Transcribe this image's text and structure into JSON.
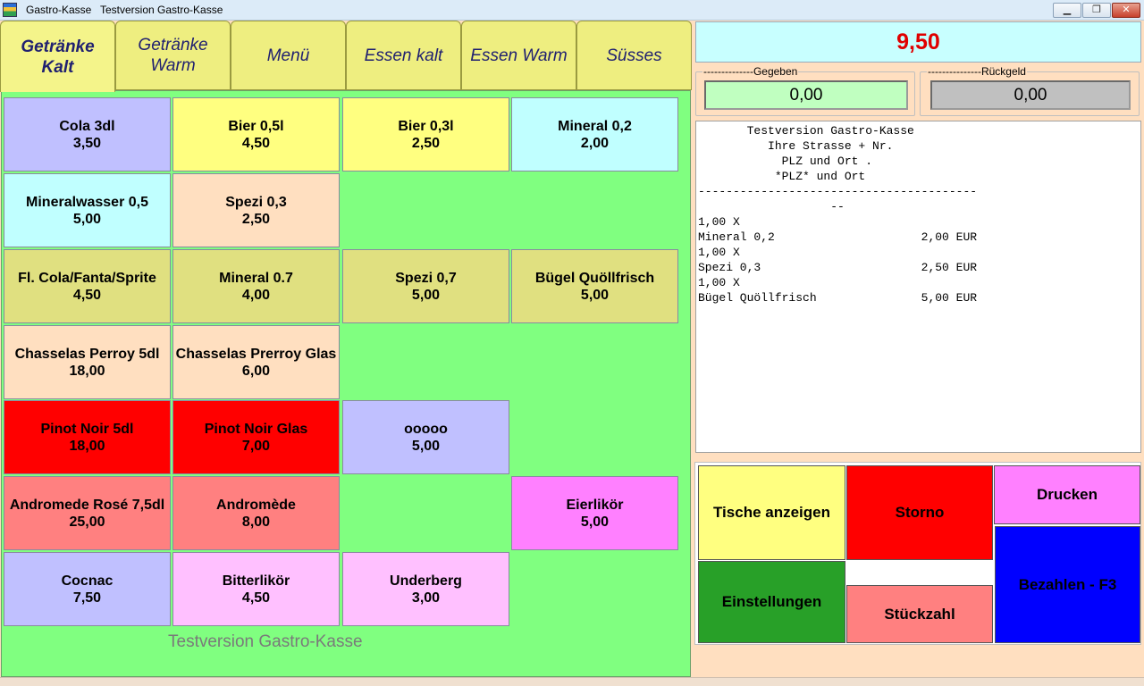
{
  "window": {
    "app_name": "Gastro-Kasse",
    "title": "Testversion Gastro-Kasse",
    "minimize": "▁",
    "maximize": "❐",
    "close": "✕"
  },
  "tabs": [
    {
      "line1": "Getränke",
      "line2": "Kalt",
      "active": true
    },
    {
      "line1": "Getränke",
      "line2": "Warm",
      "active": false
    },
    {
      "line1": "Menü",
      "line2": "",
      "active": false
    },
    {
      "line1": "Essen kalt",
      "line2": "",
      "active": false
    },
    {
      "line1": "Essen Warm",
      "line2": "",
      "active": false
    },
    {
      "line1": "Süsses",
      "line2": "",
      "active": false
    }
  ],
  "products": [
    {
      "name": "Cola 3dl",
      "price": "3,50",
      "color": "#c0c0ff"
    },
    {
      "name": "Bier 0,5l",
      "price": "4,50",
      "color": "#ffff80"
    },
    {
      "name": "Bier 0,3l",
      "price": "2,50",
      "color": "#ffff80"
    },
    {
      "name": "Mineral 0,2",
      "price": "2,00",
      "color": "#c0ffff"
    },
    {
      "name": "Mineralwasser 0,5",
      "price": "5,00",
      "color": "#c0ffff"
    },
    {
      "name": "Spezi 0,3",
      "price": "2,50",
      "color": "#ffdfc0"
    },
    {
      "name": "Fl. Cola/Fanta/Sprite",
      "price": "4,50",
      "color": "#e0e080"
    },
    {
      "name": "Mineral 0.7",
      "price": "4,00",
      "color": "#e0e080"
    },
    {
      "name": "Spezi 0,7",
      "price": "5,00",
      "color": "#e0e080"
    },
    {
      "name": "Bügel Quöllfrisch",
      "price": "5,00",
      "color": "#e0e080"
    },
    {
      "name": "Chasselas Perroy 5dl",
      "price": "18,00",
      "color": "#ffdfc0"
    },
    {
      "name": "Chasselas Prerroy Glas",
      "price": "6,00",
      "color": "#ffdfc0"
    },
    {
      "name": "Pinot Noir 5dl",
      "price": "18,00",
      "color": "#ff0000"
    },
    {
      "name": "Pinot Noir Glas",
      "price": "7,00",
      "color": "#ff0000"
    },
    {
      "name": "ooooo",
      "price": "5,00",
      "color": "#c0c0ff"
    },
    {
      "name": "Andromede Rosé 7,5dl",
      "price": "25,00",
      "color": "#ff8080"
    },
    {
      "name": "Andromède",
      "price": "8,00",
      "color": "#ff8080"
    },
    {
      "name": "Eierlikör",
      "price": "5,00",
      "color": "#ff80ff"
    },
    {
      "name": "Cocnac",
      "price": "7,50",
      "color": "#c0c0ff"
    },
    {
      "name": "Bitterlikör",
      "price": "4,50",
      "color": "#ffc0ff"
    },
    {
      "name": "Underberg",
      "price": "3,00",
      "color": "#ffc0ff"
    }
  ],
  "footer_label": "Testversion Gastro-Kasse",
  "total": "9,50",
  "given": {
    "legend": "--------------Gegeben",
    "value": "0,00"
  },
  "change": {
    "legend": "---------------Rückgeld",
    "value": "0,00"
  },
  "receipt_lines": [
    "       Testversion Gastro-Kasse",
    "          Ihre Strasse + Nr.",
    "            PLZ und Ort .",
    "           *PLZ* und Ort",
    "----------------------------------------",
    "                   --",
    "1,00 X",
    "Mineral 0,2                     2,00 EUR",
    "1,00 X",
    "Spezi 0,3                       2,50 EUR",
    "1,00 X",
    "Bügel Quöllfrisch               5,00 EUR"
  ],
  "actions": {
    "tische": "Tische anzeigen",
    "storno": "Storno",
    "drucken": "Drucken",
    "einstellungen": "Einstellungen",
    "stueckzahl": "Stückzahl",
    "bezahlen": "Bezahlen - F3"
  }
}
